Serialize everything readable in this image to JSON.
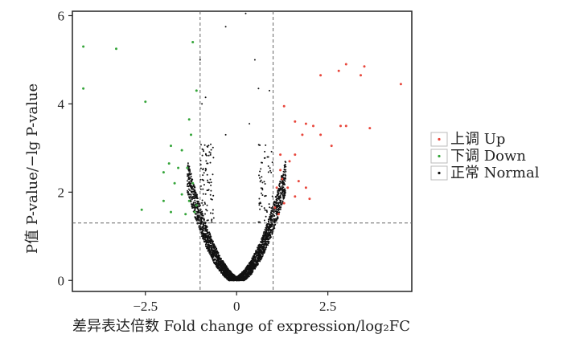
{
  "chart_data": {
    "type": "scatter",
    "title": "",
    "xlabel": "差异表达倍数 Fold change of expression/log₂FC",
    "ylabel": "P值 P-value/−lg P-value",
    "xlim": [
      -4.5,
      4.8
    ],
    "ylim": [
      -0.25,
      6.1
    ],
    "xticks": [
      -2.5,
      0,
      2.5
    ],
    "xtick_labels": [
      "−2.5",
      "0",
      "2.5"
    ],
    "yticks": [
      0,
      2,
      4,
      6
    ],
    "ytick_labels": [
      "0",
      "2",
      "4",
      "6"
    ],
    "grid": false,
    "thresholds": {
      "fold_change": [
        -1,
        1
      ],
      "p_value": 1.3
    },
    "legend_position": "right",
    "series": [
      {
        "name": "上调 Up",
        "color": "#e8473c",
        "points": [
          [
            3.0,
            4.9
          ],
          [
            3.5,
            4.85
          ],
          [
            4.5,
            4.45
          ],
          [
            2.3,
            4.65
          ],
          [
            3.4,
            4.65
          ],
          [
            2.8,
            4.75
          ],
          [
            1.3,
            3.95
          ],
          [
            3.65,
            3.45
          ],
          [
            2.85,
            3.5
          ],
          [
            3.0,
            3.5
          ],
          [
            2.1,
            3.5
          ],
          [
            1.9,
            3.55
          ],
          [
            1.6,
            3.6
          ],
          [
            1.8,
            3.3
          ],
          [
            2.3,
            3.3
          ],
          [
            2.6,
            3.05
          ],
          [
            1.6,
            2.85
          ],
          [
            1.2,
            2.85
          ],
          [
            1.45,
            2.7
          ],
          [
            1.2,
            2.5
          ],
          [
            1.25,
            2.3
          ],
          [
            1.7,
            2.25
          ],
          [
            1.9,
            2.1
          ],
          [
            1.4,
            2.1
          ],
          [
            1.1,
            2.1
          ],
          [
            1.6,
            1.9
          ],
          [
            1.3,
            1.75
          ],
          [
            1.05,
            1.65
          ],
          [
            2.0,
            1.85
          ],
          [
            1.15,
            1.5
          ]
        ]
      },
      {
        "name": "下调 Down",
        "color": "#35a53a",
        "points": [
          [
            -4.2,
            5.3
          ],
          [
            -3.3,
            5.25
          ],
          [
            -4.2,
            4.35
          ],
          [
            -2.5,
            4.05
          ],
          [
            -1.2,
            5.4
          ],
          [
            -1.1,
            4.3
          ],
          [
            -1.3,
            3.65
          ],
          [
            -1.25,
            3.3
          ],
          [
            -1.8,
            3.05
          ],
          [
            -1.5,
            2.95
          ],
          [
            -1.85,
            2.65
          ],
          [
            -1.6,
            2.55
          ],
          [
            -1.35,
            2.55
          ],
          [
            -2.0,
            2.45
          ],
          [
            -1.7,
            2.2
          ],
          [
            -1.2,
            2.2
          ],
          [
            -1.5,
            1.95
          ],
          [
            -1.3,
            1.8
          ],
          [
            -2.0,
            1.8
          ],
          [
            -1.1,
            1.7
          ],
          [
            -1.8,
            1.55
          ],
          [
            -2.6,
            1.6
          ],
          [
            -1.4,
            1.5
          ],
          [
            -1.15,
            1.55
          ]
        ]
      },
      {
        "name": "正常 Normal",
        "color": "#111111"
      }
    ]
  }
}
